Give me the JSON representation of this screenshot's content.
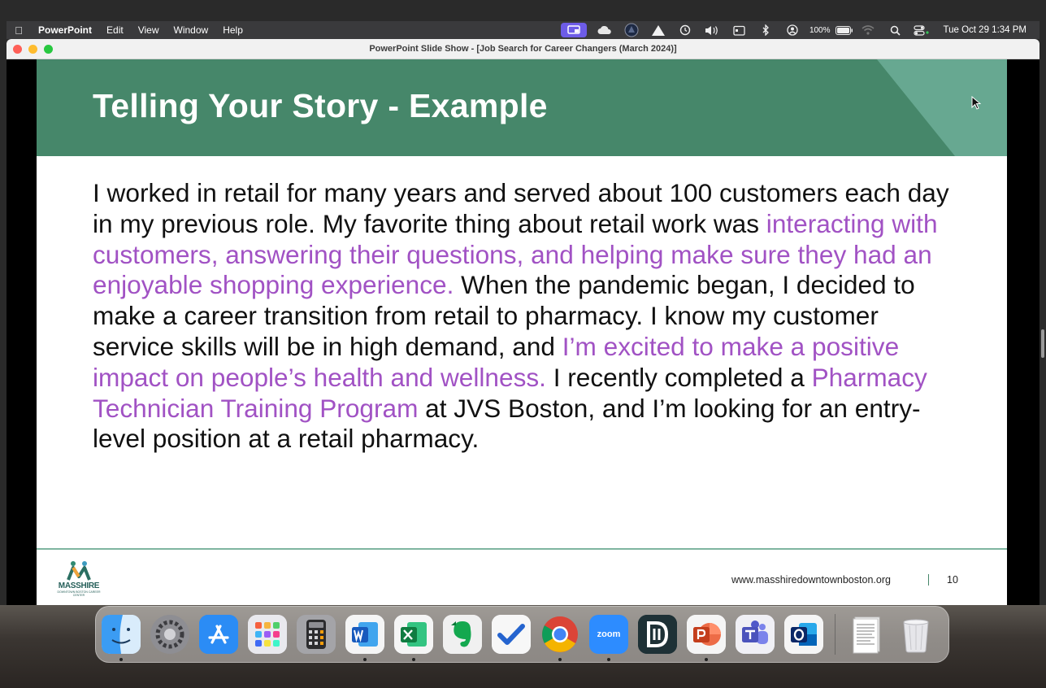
{
  "menubar": {
    "app_name": "PowerPoint",
    "items": [
      "Edit",
      "View",
      "Window",
      "Help"
    ],
    "battery": "100%",
    "clock": "Tue Oct 29  1:34 PM"
  },
  "window": {
    "title": "PowerPoint Slide Show - [Job Search for Career Changers (March 2024)]"
  },
  "slide": {
    "title": "Telling Your Story - Example",
    "body": {
      "p1": "I worked in retail for many years and served about 100 customers each day in my previous role. My favorite thing about retail work was ",
      "h1": "interacting with customers, answering their questions, and helping make sure they had an enjoyable shopping experience.",
      "p2": " When the pandemic began, I decided to make a career transition from retail to pharmacy. I know my customer service skills will be in high demand, and ",
      "h2": "I’m excited to make a positive impact on people’s health and wellness.",
      "p3": " I recently completed a ",
      "h3": "Pharmacy Technician Training Program",
      "p4": " at JVS Boston, and I’m looking for an entry-level position at a retail pharmacy."
    },
    "logo_text": "MASSHIRE",
    "logo_subtext": "DOWNTOWN BOSTON CAREER CENTER",
    "footer_url": "www.masshiredowntownboston.org",
    "page_number": "10",
    "colors": {
      "header": "#46876a",
      "accent": "#67a891",
      "highlight": "#a152c4"
    }
  },
  "dock": {
    "items": [
      {
        "name": "finder",
        "glyph": "",
        "running": true
      },
      {
        "name": "settings",
        "glyph": "⚙",
        "running": false
      },
      {
        "name": "appstore",
        "glyph": "A",
        "running": false
      },
      {
        "name": "launchpad",
        "glyph": "",
        "running": false
      },
      {
        "name": "calculator",
        "glyph": "",
        "running": false
      },
      {
        "name": "word",
        "glyph": "W",
        "running": true
      },
      {
        "name": "excel",
        "glyph": "X",
        "running": true
      },
      {
        "name": "evernote",
        "glyph": "",
        "running": false
      },
      {
        "name": "todo",
        "glyph": "✓",
        "running": false
      },
      {
        "name": "chrome",
        "glyph": "",
        "running": true
      },
      {
        "name": "zoom",
        "glyph": "zoom",
        "running": true
      },
      {
        "name": "dashlane",
        "glyph": "D",
        "running": false
      },
      {
        "name": "powerpoint",
        "glyph": "P",
        "running": true
      },
      {
        "name": "teams",
        "glyph": "T",
        "running": false
      },
      {
        "name": "outlook",
        "glyph": "O",
        "running": false
      }
    ]
  }
}
